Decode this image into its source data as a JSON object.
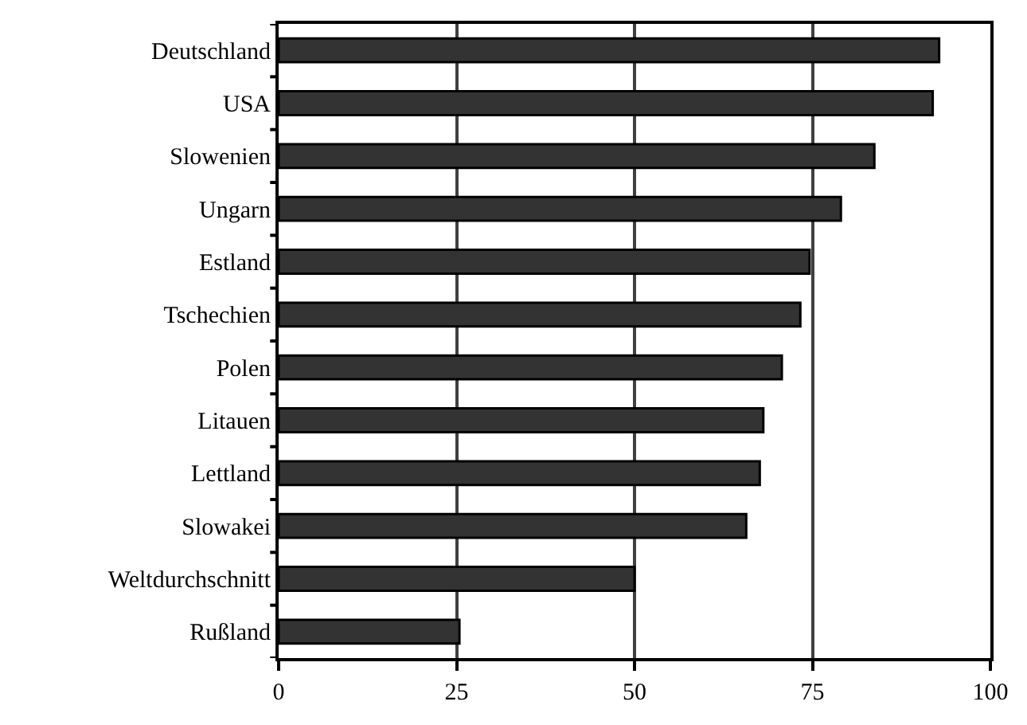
{
  "chart_data": {
    "type": "bar",
    "orientation": "horizontal",
    "categories": [
      "Deutschland",
      "USA",
      "Slowenien",
      "Ungarn",
      "Estland",
      "Tschechien",
      "Polen",
      "Litauen",
      "Lettland",
      "Slowakei",
      "Weltdurchschnitt",
      "Rußland"
    ],
    "values": [
      92.8,
      91.9,
      83.7,
      79,
      74.6,
      73.3,
      70.7,
      68.1,
      67.6,
      65.7,
      50,
      25.4
    ],
    "color": "#333333",
    "xlim": [
      0,
      100
    ],
    "xticks": [
      0,
      25,
      50,
      75,
      100
    ],
    "grid": "x"
  }
}
